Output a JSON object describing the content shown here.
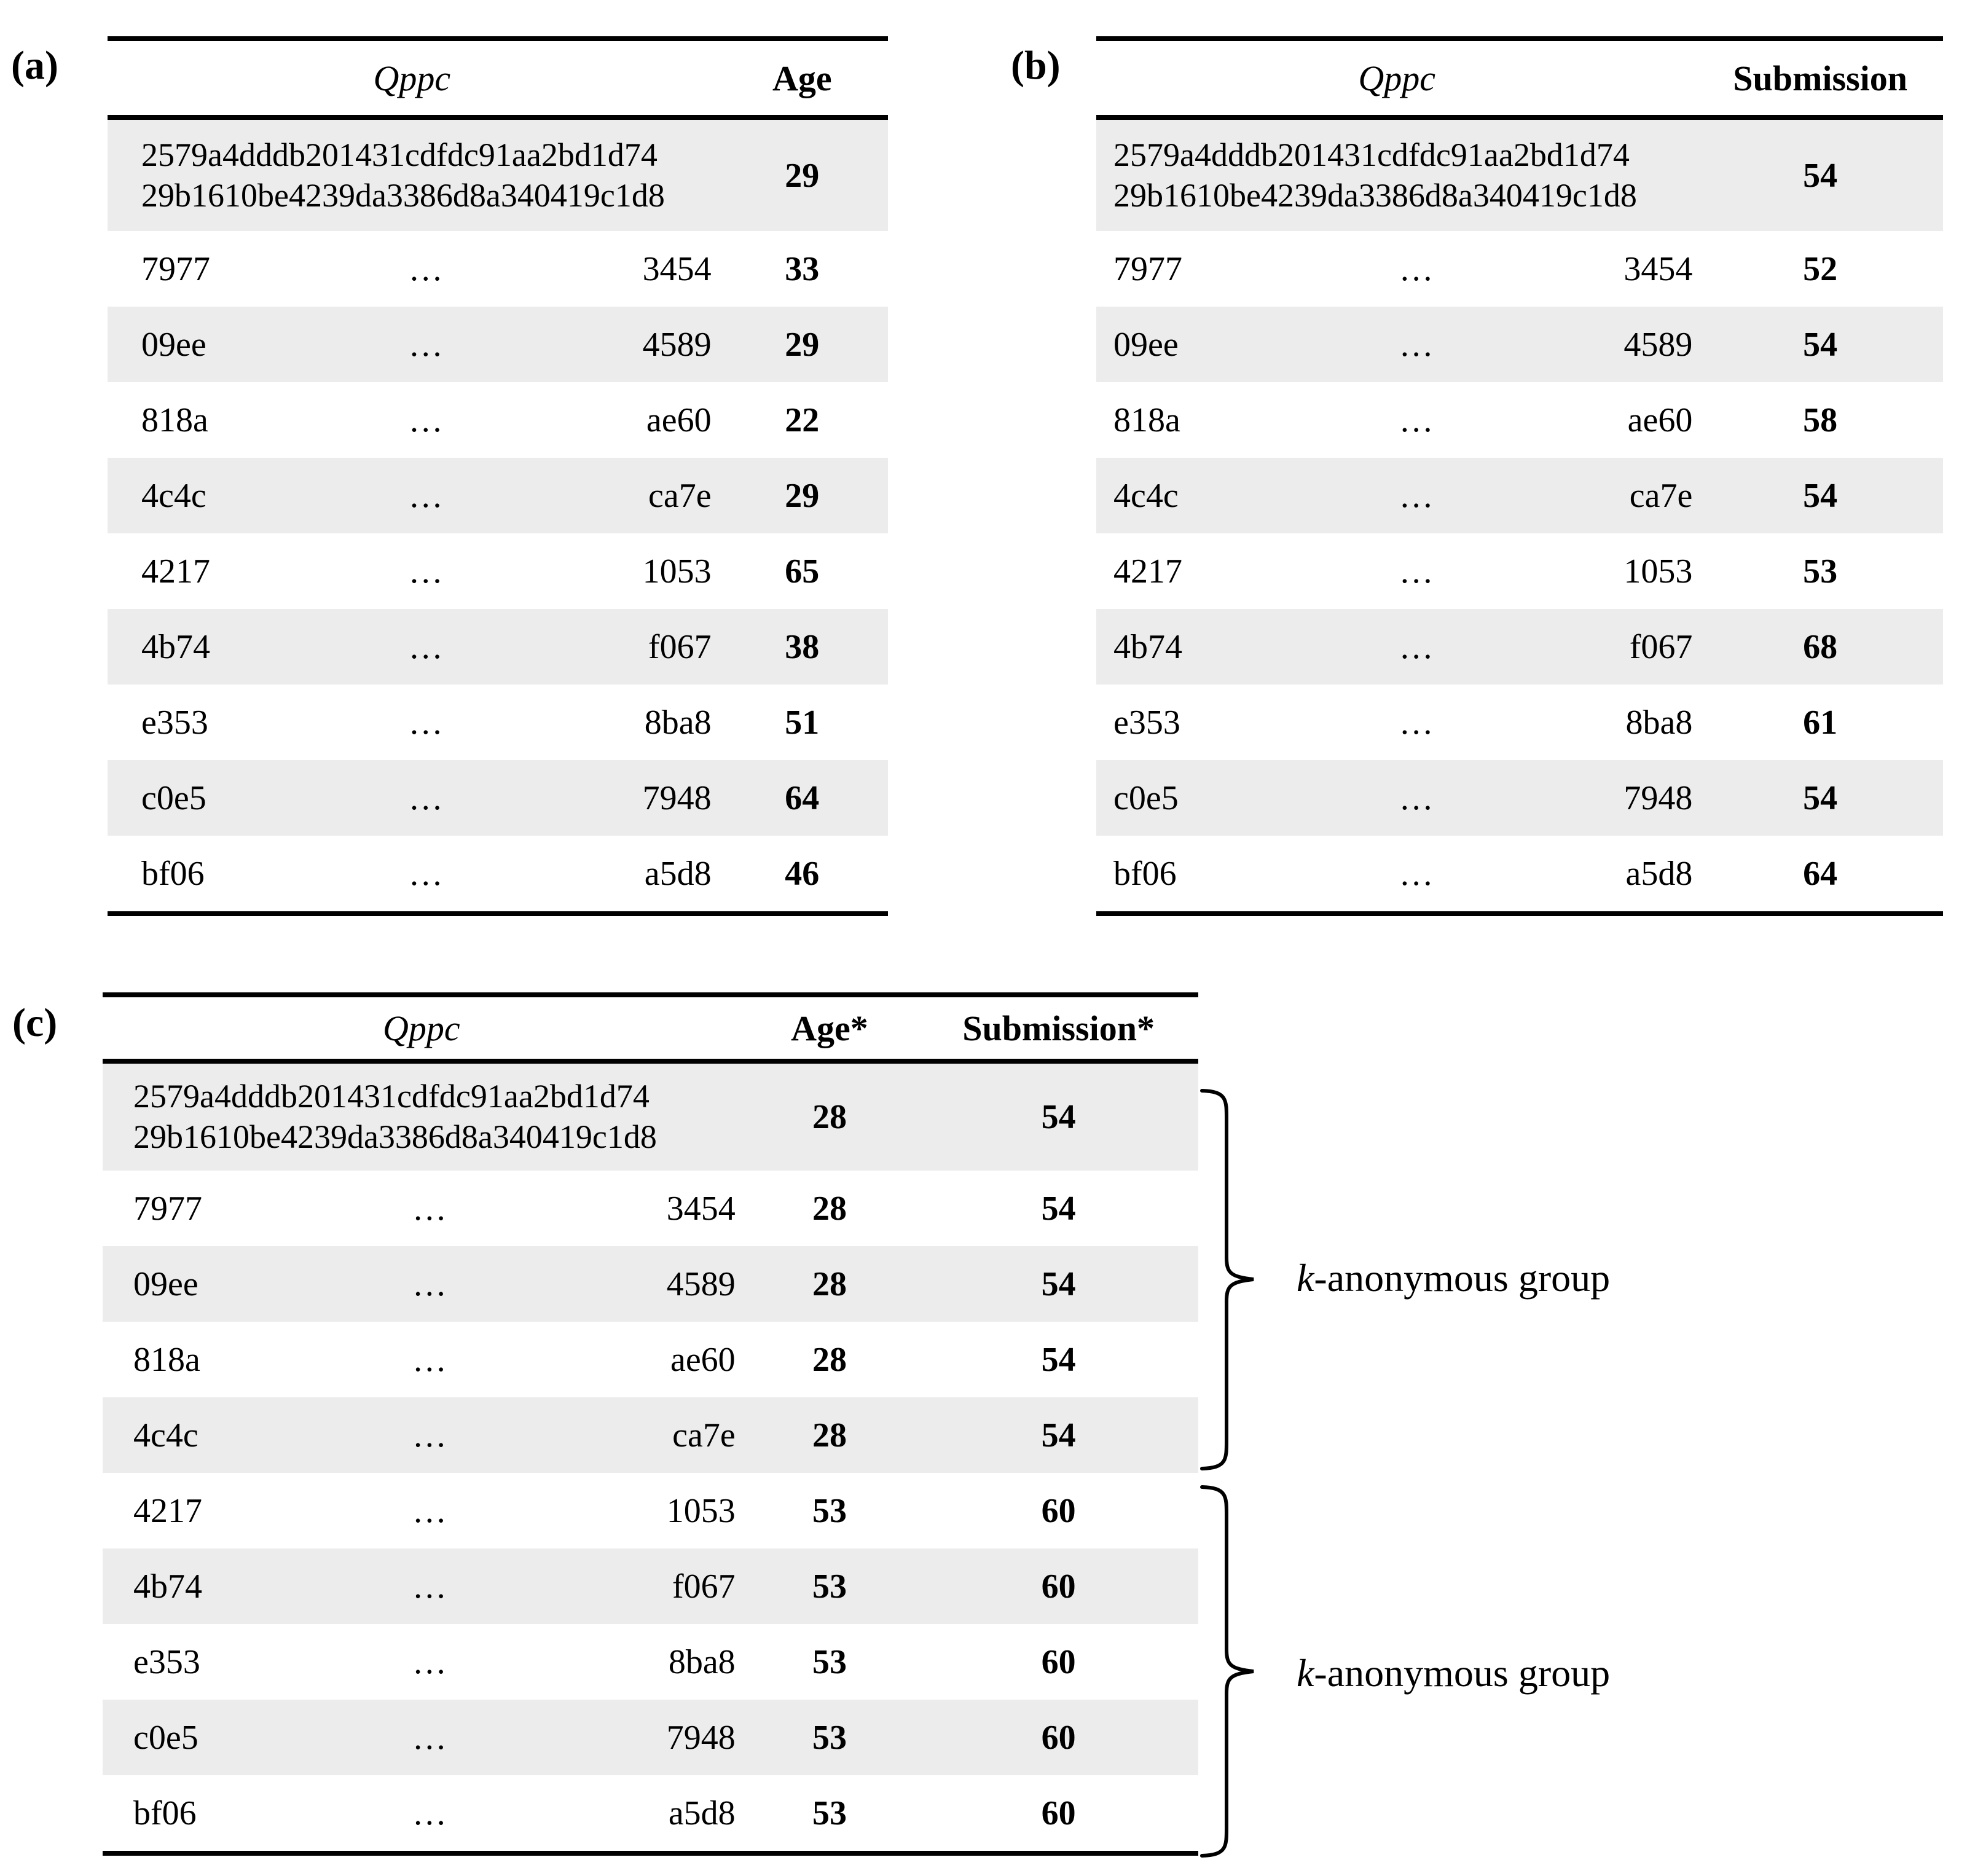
{
  "colors": {
    "row_shade": "#ececec",
    "rule": "#000000",
    "text": "#000000"
  },
  "panels": {
    "a": "(a)",
    "b": "(b)",
    "c": "(c)"
  },
  "tables": {
    "a": {
      "qppc_header": "Qppc",
      "value_headers": [
        "Age"
      ],
      "rows": [
        {
          "hash1": "2579a4dddb201431cdfdc91aa2bd1d74",
          "hash2": "29b1610be4239da3386d8a340419c1d8",
          "values": [
            "29"
          ]
        },
        {
          "prefix": "7977",
          "dots": "…",
          "suffix": "3454",
          "values": [
            "33"
          ]
        },
        {
          "prefix": "09ee",
          "dots": "…",
          "suffix": "4589",
          "values": [
            "29"
          ]
        },
        {
          "prefix": "818a",
          "dots": "…",
          "suffix": "ae60",
          "values": [
            "22"
          ]
        },
        {
          "prefix": "4c4c",
          "dots": "…",
          "suffix": "ca7e",
          "values": [
            "29"
          ]
        },
        {
          "prefix": "4217",
          "dots": "…",
          "suffix": "1053",
          "values": [
            "65"
          ]
        },
        {
          "prefix": "4b74",
          "dots": "…",
          "suffix": "f067",
          "values": [
            "38"
          ]
        },
        {
          "prefix": "e353",
          "dots": "…",
          "suffix": "8ba8",
          "values": [
            "51"
          ]
        },
        {
          "prefix": "c0e5",
          "dots": "…",
          "suffix": "7948",
          "values": [
            "64"
          ]
        },
        {
          "prefix": "bf06",
          "dots": "…",
          "suffix": "a5d8",
          "values": [
            "46"
          ]
        }
      ]
    },
    "b": {
      "qppc_header": "Qppc",
      "value_headers": [
        "Submission"
      ],
      "rows": [
        {
          "hash1": "2579a4dddb201431cdfdc91aa2bd1d74",
          "hash2": "29b1610be4239da3386d8a340419c1d8",
          "values": [
            "54"
          ]
        },
        {
          "prefix": "7977",
          "dots": "…",
          "suffix": "3454",
          "values": [
            "52"
          ]
        },
        {
          "prefix": "09ee",
          "dots": "…",
          "suffix": "4589",
          "values": [
            "54"
          ]
        },
        {
          "prefix": "818a",
          "dots": "…",
          "suffix": "ae60",
          "values": [
            "58"
          ]
        },
        {
          "prefix": "4c4c",
          "dots": "…",
          "suffix": "ca7e",
          "values": [
            "54"
          ]
        },
        {
          "prefix": "4217",
          "dots": "…",
          "suffix": "1053",
          "values": [
            "53"
          ]
        },
        {
          "prefix": "4b74",
          "dots": "…",
          "suffix": "f067",
          "values": [
            "68"
          ]
        },
        {
          "prefix": "e353",
          "dots": "…",
          "suffix": "8ba8",
          "values": [
            "61"
          ]
        },
        {
          "prefix": "c0e5",
          "dots": "…",
          "suffix": "7948",
          "values": [
            "54"
          ]
        },
        {
          "prefix": "bf06",
          "dots": "…",
          "suffix": "a5d8",
          "values": [
            "64"
          ]
        }
      ]
    },
    "c": {
      "qppc_header": "Qppc",
      "value_headers": [
        "Age*",
        "Submission*"
      ],
      "rows": [
        {
          "hash1": "2579a4dddb201431cdfdc91aa2bd1d74",
          "hash2": "29b1610be4239da3386d8a340419c1d8",
          "values": [
            "28",
            "54"
          ]
        },
        {
          "prefix": "7977",
          "dots": "…",
          "suffix": "3454",
          "values": [
            "28",
            "54"
          ]
        },
        {
          "prefix": "09ee",
          "dots": "…",
          "suffix": "4589",
          "values": [
            "28",
            "54"
          ]
        },
        {
          "prefix": "818a",
          "dots": "…",
          "suffix": "ae60",
          "values": [
            "28",
            "54"
          ]
        },
        {
          "prefix": "4c4c",
          "dots": "…",
          "suffix": "ca7e",
          "values": [
            "28",
            "54"
          ]
        },
        {
          "prefix": "4217",
          "dots": "…",
          "suffix": "1053",
          "values": [
            "53",
            "60"
          ]
        },
        {
          "prefix": "4b74",
          "dots": "…",
          "suffix": "f067",
          "values": [
            "53",
            "60"
          ]
        },
        {
          "prefix": "e353",
          "dots": "…",
          "suffix": "8ba8",
          "values": [
            "53",
            "60"
          ]
        },
        {
          "prefix": "c0e5",
          "dots": "…",
          "suffix": "7948",
          "values": [
            "53",
            "60"
          ]
        },
        {
          "prefix": "bf06",
          "dots": "…",
          "suffix": "a5d8",
          "values": [
            "53",
            "60"
          ]
        }
      ]
    }
  },
  "annotations": {
    "groups": [
      {
        "k": "k",
        "label": "-anonymous group"
      },
      {
        "k": "k",
        "label": "-anonymous group"
      }
    ]
  }
}
